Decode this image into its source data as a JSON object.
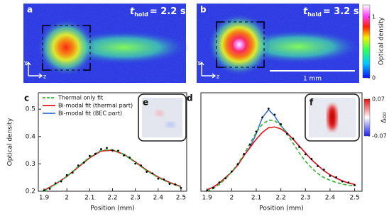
{
  "images": [
    {
      "label": "a",
      "t": "t",
      "t_sub": "hold",
      "t_value": "= 2.2 s"
    },
    {
      "label": "b",
      "t": "t",
      "t_sub": "hold",
      "t_value": "= 3.2 s"
    }
  ],
  "axes_labels": [
    "y",
    "z"
  ],
  "scale_bar": "1 mm",
  "colorbar": {
    "label": "Optical density",
    "lim": [
      0,
      1.2
    ],
    "ticks": [
      0,
      1
    ]
  },
  "insets": {
    "labels": [
      "e",
      "f"
    ],
    "colorbar": {
      "label": "Δ",
      "label_sub": "OD",
      "lim": [
        -0.07,
        0.07
      ],
      "ticks": [
        -0.07,
        0.07
      ]
    }
  },
  "chart_data": [
    {
      "type": "line",
      "label": "c",
      "xlabel": "Position (mm)",
      "ylabel": "Optical density",
      "xlim": [
        1.875,
        2.525
      ],
      "ylim": [
        0.2,
        0.56
      ],
      "xticks": [
        1.9,
        2,
        2.1,
        2.2,
        2.3,
        2.4,
        2.5
      ],
      "yticks": [
        0.2,
        0.3,
        0.4,
        0.5
      ],
      "legend": "upper left",
      "x": [
        1.9,
        1.95,
        2.0,
        2.05,
        2.1,
        2.15,
        2.2,
        2.25,
        2.3,
        2.35,
        2.4,
        2.45,
        2.5
      ],
      "series": [
        {
          "name": "Thermal only fit",
          "color": "#2fb52f",
          "dashed": true,
          "values": [
            0.2,
            0.225,
            0.255,
            0.29,
            0.325,
            0.35,
            0.352,
            0.335,
            0.305,
            0.275,
            0.25,
            0.23,
            0.215
          ]
        },
        {
          "name": "Bi-modal fit (thermal part)",
          "color": "#e3141c",
          "values": [
            0.203,
            0.226,
            0.254,
            0.288,
            0.322,
            0.347,
            0.35,
            0.335,
            0.307,
            0.277,
            0.252,
            0.232,
            0.217
          ]
        },
        {
          "name": "Bi-modal fit (BEC part)",
          "color": "#3a6fd8",
          "values": [
            0.203,
            0.226,
            0.254,
            0.288,
            0.322,
            0.347,
            0.35,
            0.335,
            0.307,
            0.277,
            0.252,
            0.232,
            0.217
          ]
        }
      ],
      "points": {
        "color": "#000000",
        "x": [
          1.9,
          1.925,
          1.95,
          1.975,
          2.0,
          2.025,
          2.05,
          2.075,
          2.1,
          2.125,
          2.15,
          2.175,
          2.2,
          2.225,
          2.25,
          2.275,
          2.3,
          2.325,
          2.35,
          2.375,
          2.4,
          2.425,
          2.45,
          2.475,
          2.5
        ],
        "values": [
          0.203,
          0.209,
          0.229,
          0.236,
          0.259,
          0.268,
          0.294,
          0.305,
          0.329,
          0.337,
          0.354,
          0.358,
          0.349,
          0.348,
          0.331,
          0.323,
          0.301,
          0.294,
          0.271,
          0.265,
          0.246,
          0.243,
          0.227,
          0.225,
          0.212
        ]
      }
    },
    {
      "type": "line",
      "label": "d",
      "xlabel": "Position (mm)",
      "xlim": [
        1.875,
        2.53
      ],
      "ylim": [
        0.2,
        0.56
      ],
      "xticks": [
        1.9,
        2,
        2.1,
        2.2,
        2.3,
        2.4,
        2.5
      ],
      "x": [
        1.9,
        1.925,
        1.95,
        1.975,
        2.0,
        2.025,
        2.05,
        2.075,
        2.1,
        2.125,
        2.15,
        2.175,
        2.2,
        2.225,
        2.25,
        2.275,
        2.3,
        2.325,
        2.35,
        2.375,
        2.4,
        2.425,
        2.45,
        2.475,
        2.5
      ],
      "series": [
        {
          "color": "#2fb52f",
          "dashed": true,
          "values": [
            0.2,
            0.21,
            0.225,
            0.245,
            0.27,
            0.3,
            0.335,
            0.375,
            0.415,
            0.445,
            0.46,
            0.458,
            0.44,
            0.41,
            0.375,
            0.34,
            0.31,
            0.285,
            0.265,
            0.25,
            0.24,
            0.232,
            0.226,
            0.222,
            0.22
          ]
        },
        {
          "color": "#e3141c",
          "values": [
            0.205,
            0.215,
            0.23,
            0.25,
            0.27,
            0.295,
            0.33,
            0.36,
            0.39,
            0.415,
            0.432,
            0.435,
            0.428,
            0.412,
            0.39,
            0.365,
            0.34,
            0.315,
            0.295,
            0.275,
            0.26,
            0.248,
            0.238,
            0.23,
            0.225
          ]
        },
        {
          "color": "#3a6fd8",
          "values": [
            0.205,
            0.215,
            0.23,
            0.25,
            0.27,
            0.295,
            0.33,
            0.362,
            0.41,
            0.47,
            0.498,
            0.475,
            0.44,
            0.414,
            0.39,
            0.365,
            0.34,
            0.315,
            0.295,
            0.275,
            0.26,
            0.248,
            0.238,
            0.23,
            0.225
          ]
        }
      ],
      "points": {
        "color": "#000000",
        "x": [
          1.9,
          1.925,
          1.95,
          1.975,
          2.0,
          2.025,
          2.05,
          2.075,
          2.1,
          2.125,
          2.15,
          2.175,
          2.2,
          2.225,
          2.25,
          2.275,
          2.3,
          2.325,
          2.35,
          2.375,
          2.4,
          2.425,
          2.45,
          2.475,
          2.5
        ],
        "values": [
          0.203,
          0.212,
          0.232,
          0.247,
          0.272,
          0.299,
          0.336,
          0.37,
          0.418,
          0.47,
          0.502,
          0.48,
          0.445,
          0.41,
          0.392,
          0.362,
          0.335,
          0.318,
          0.292,
          0.279,
          0.256,
          0.251,
          0.236,
          0.232,
          0.222
        ]
      }
    }
  ]
}
